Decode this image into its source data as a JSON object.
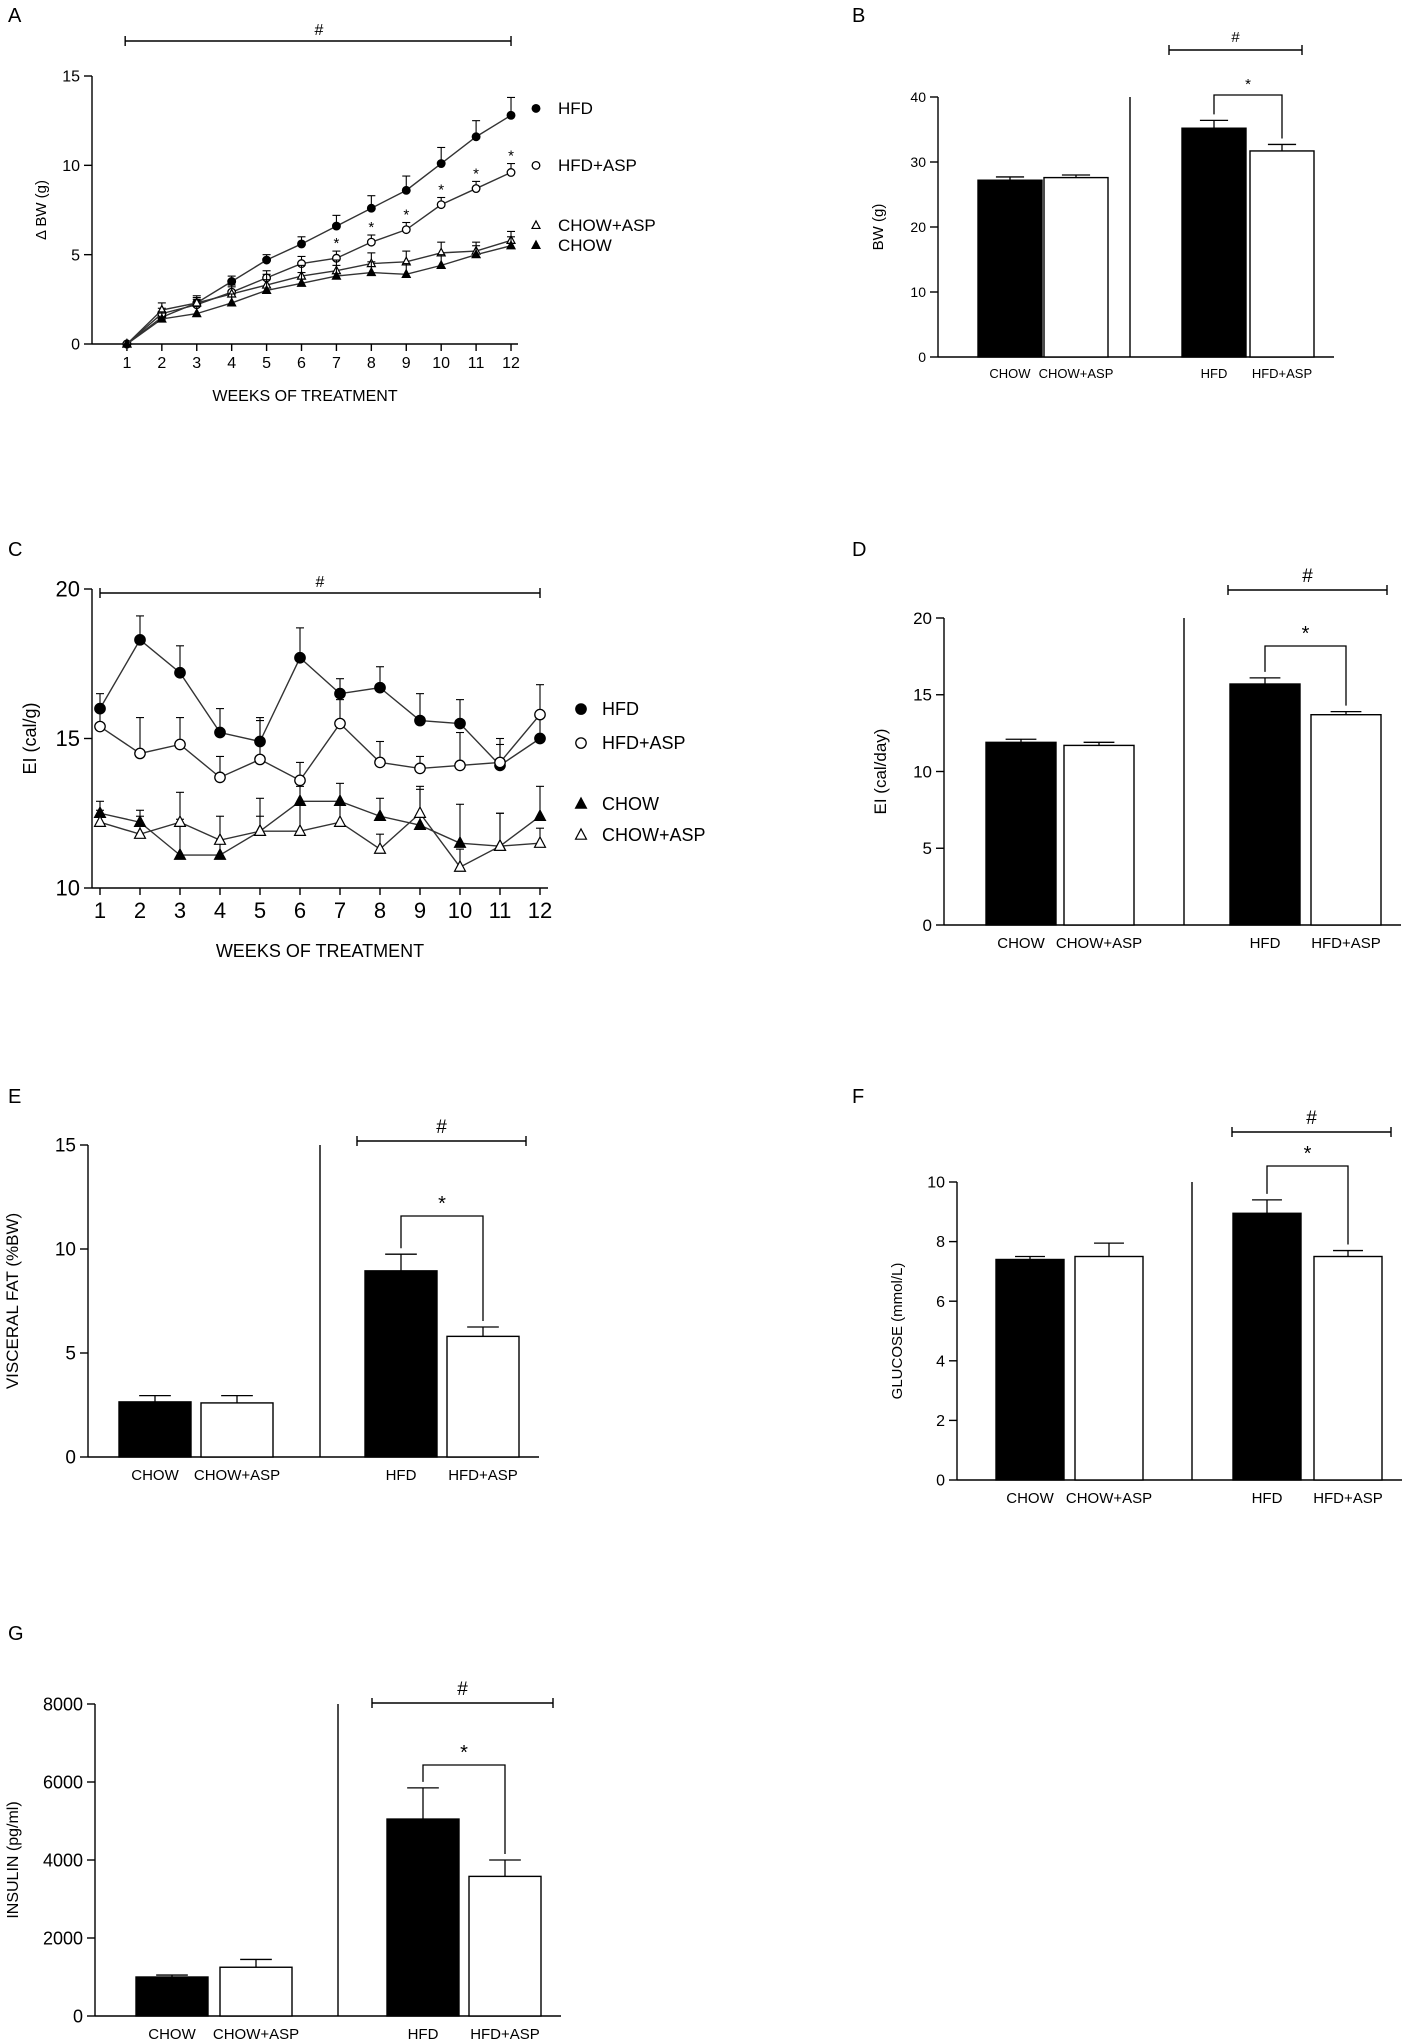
{
  "chart_data": [
    {
      "panel": "A",
      "type": "line",
      "xlabel": "WEEKS OF TREATMENT",
      "ylabel": "Δ BW (g)",
      "x": [
        1,
        2,
        3,
        4,
        5,
        6,
        7,
        8,
        9,
        10,
        11,
        12
      ],
      "xlim": [
        0,
        12.2
      ],
      "ylim": [
        0,
        15
      ],
      "yticks": [
        0,
        5,
        10,
        15
      ],
      "series": [
        {
          "name": "HFD",
          "marker": "filled-circle",
          "values": [
            0,
            1.5,
            2.3,
            3.5,
            4.7,
            5.6,
            6.6,
            7.6,
            8.6,
            10.1,
            11.6,
            12.8
          ],
          "errors": [
            0,
            0.3,
            0.3,
            0.3,
            0.3,
            0.4,
            0.6,
            0.7,
            0.8,
            0.9,
            0.9,
            1.0
          ]
        },
        {
          "name": "HFD+ASP",
          "marker": "open-circle",
          "values": [
            0,
            1.7,
            2.2,
            2.9,
            3.7,
            4.5,
            4.8,
            5.7,
            6.4,
            7.8,
            8.7,
            9.6
          ],
          "errors": [
            0,
            0.3,
            0.3,
            0.3,
            0.4,
            0.4,
            0.4,
            0.4,
            0.4,
            0.4,
            0.4,
            0.5
          ]
        },
        {
          "name": "CHOW+ASP",
          "marker": "open-triangle",
          "values": [
            0,
            1.9,
            2.3,
            2.8,
            3.3,
            3.8,
            4.1,
            4.5,
            4.6,
            5.1,
            5.2,
            5.8
          ],
          "errors": [
            0,
            0.4,
            0.4,
            0.5,
            0.6,
            0.6,
            0.6,
            0.6,
            0.6,
            0.6,
            0.5,
            0.5
          ]
        },
        {
          "name": "CHOW",
          "marker": "filled-triangle",
          "values": [
            0,
            1.4,
            1.7,
            2.3,
            3.0,
            3.4,
            3.8,
            4.0,
            3.9,
            4.4,
            5.0,
            5.5
          ],
          "errors": [
            0,
            0.4,
            0.4,
            0.5,
            0.6,
            0.6,
            0.6,
            0.6,
            0.6,
            0.6,
            0.5,
            0.5
          ]
        }
      ],
      "annotations": {
        "hash": "#",
        "stars_at_weeks": [
          7,
          8,
          9,
          10,
          11,
          12
        ],
        "star": "*"
      }
    },
    {
      "panel": "B",
      "type": "bar",
      "ylabel": "BW (g)",
      "ylim": [
        0,
        40
      ],
      "yticks": [
        0,
        10,
        20,
        30,
        40
      ],
      "categories": [
        "CHOW",
        "CHOW+ASP",
        "HFD",
        "HFD+ASP"
      ],
      "values": [
        27.2,
        27.6,
        35.2,
        31.7
      ],
      "errors": [
        0.5,
        0.4,
        1.2,
        1.0
      ],
      "fills": [
        "black",
        "white",
        "black",
        "white"
      ],
      "annotations": {
        "hash": "#",
        "star": "*"
      }
    },
    {
      "panel": "C",
      "type": "line",
      "xlabel": "WEEKS OF TREATMENT",
      "ylabel": "EI (cal/g)",
      "x": [
        1,
        2,
        3,
        4,
        5,
        6,
        7,
        8,
        9,
        10,
        11,
        12
      ],
      "xlim": [
        0.8,
        12.2
      ],
      "ylim": [
        10,
        20
      ],
      "yticks": [
        10,
        15,
        20
      ],
      "series": [
        {
          "name": "HFD",
          "marker": "filled-circle",
          "values": [
            16.0,
            18.3,
            17.2,
            15.2,
            14.9,
            17.7,
            16.5,
            16.7,
            15.6,
            15.5,
            14.1,
            15.0
          ],
          "errors": [
            0.5,
            0.8,
            0.9,
            0.8,
            0.8,
            1.0,
            0.5,
            0.7,
            0.9,
            0.8,
            0.7,
            0.8
          ]
        },
        {
          "name": "HFD+ASP",
          "marker": "open-circle",
          "values": [
            15.4,
            14.5,
            14.8,
            13.7,
            14.3,
            13.6,
            15.5,
            14.2,
            14.0,
            14.1,
            14.2,
            15.8
          ],
          "errors": [
            0.5,
            1.2,
            0.9,
            0.7,
            1.3,
            0.6,
            0.8,
            0.7,
            0.4,
            1.1,
            0.8,
            1.0
          ]
        },
        {
          "name": "CHOW",
          "marker": "filled-triangle",
          "values": [
            12.5,
            12.2,
            11.1,
            11.1,
            11.9,
            12.9,
            12.9,
            12.4,
            12.1,
            11.5,
            11.4,
            12.4
          ],
          "errors": [
            0.4,
            0.4,
            1.2,
            0.5,
            1.1,
            0.5,
            0.6,
            0.6,
            1.3,
            1.3,
            1.1,
            1.0
          ]
        },
        {
          "name": "CHOW+ASP",
          "marker": "open-triangle",
          "values": [
            12.2,
            11.8,
            12.2,
            11.6,
            11.9,
            11.9,
            12.2,
            11.3,
            12.5,
            10.7,
            11.4,
            11.5
          ],
          "errors": [
            0.4,
            0.6,
            1.0,
            0.8,
            0.5,
            0.9,
            0.6,
            0.5,
            0.8,
            0.6,
            1.1,
            0.5
          ]
        }
      ],
      "annotations": {
        "hash": "#"
      }
    },
    {
      "panel": "D",
      "type": "bar",
      "ylabel": "EI  (cal/day)",
      "ylim": [
        0,
        20
      ],
      "yticks": [
        0,
        5,
        10,
        15,
        20
      ],
      "categories": [
        "CHOW",
        "CHOW+ASP",
        "HFD",
        "HFD+ASP"
      ],
      "values": [
        11.9,
        11.7,
        15.7,
        13.7
      ],
      "errors": [
        0.2,
        0.2,
        0.4,
        0.2
      ],
      "fills": [
        "black",
        "white",
        "black",
        "white"
      ],
      "annotations": {
        "hash": "#",
        "star": "*"
      }
    },
    {
      "panel": "E",
      "type": "bar",
      "ylabel": "VISCERAL FAT (%BW)",
      "ylim": [
        0,
        15
      ],
      "yticks": [
        0,
        5,
        10,
        15
      ],
      "categories": [
        "CHOW",
        "CHOW+ASP",
        "HFD",
        "HFD+ASP"
      ],
      "values": [
        2.65,
        2.6,
        8.95,
        5.8
      ],
      "errors": [
        0.3,
        0.35,
        0.8,
        0.45
      ],
      "fills": [
        "black",
        "white",
        "black",
        "white"
      ],
      "annotations": {
        "hash": "#",
        "star": "*"
      }
    },
    {
      "panel": "F",
      "type": "bar",
      "ylabel": "GLUCOSE (mmol/L)",
      "ylim": [
        0,
        10
      ],
      "yticks": [
        0,
        2,
        4,
        6,
        8,
        10
      ],
      "categories": [
        "CHOW",
        "CHOW+ASP",
        "HFD",
        "HFD+ASP"
      ],
      "values": [
        7.4,
        7.5,
        8.95,
        7.5
      ],
      "errors": [
        0.1,
        0.45,
        0.45,
        0.2
      ],
      "fills": [
        "black",
        "white",
        "black",
        "white"
      ],
      "annotations": {
        "hash": "#",
        "star": "*"
      }
    },
    {
      "panel": "G",
      "type": "bar",
      "ylabel": "INSULIN (pg/ml)",
      "ylim": [
        0,
        8000
      ],
      "yticks": [
        0,
        2000,
        4000,
        6000,
        8000
      ],
      "categories": [
        "CHOW",
        "CHOW+ASP",
        "HFD",
        "HFD+ASP"
      ],
      "values": [
        1000,
        1250,
        5050,
        3580
      ],
      "errors": [
        50,
        200,
        800,
        420
      ],
      "fills": [
        "black",
        "white",
        "black",
        "white"
      ],
      "annotations": {
        "hash": "#",
        "star": "*"
      }
    }
  ]
}
